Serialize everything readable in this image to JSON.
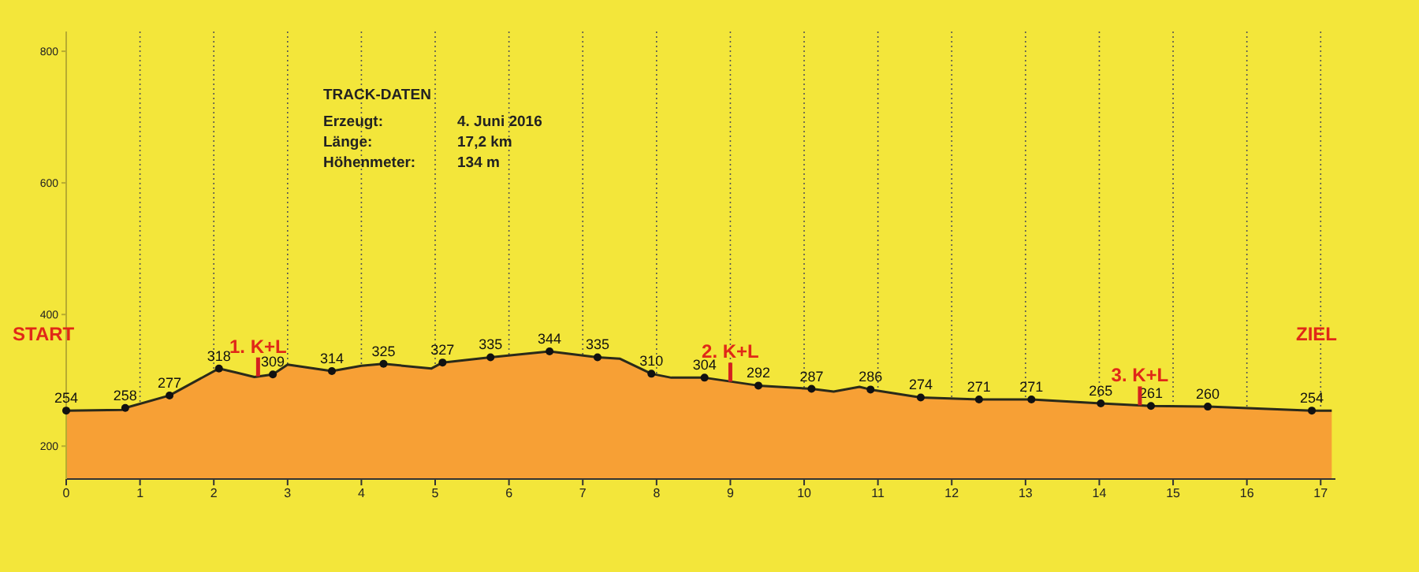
{
  "chart_data": {
    "type": "area",
    "x": [
      0,
      0.75,
      0.8,
      1.4,
      2.07,
      2.3,
      2.55,
      2.8,
      3.0,
      3.6,
      4.0,
      4.3,
      4.95,
      5.1,
      5.75,
      6.55,
      7.2,
      7.5,
      7.93,
      8.2,
      8.65,
      9.38,
      10.1,
      10.4,
      10.75,
      10.9,
      11.58,
      12.37,
      13.08,
      14.02,
      14.7,
      15.47,
      16.88,
      17.15
    ],
    "series": [
      {
        "color": "#f7a035",
        "values": [
          254,
          255,
          258,
          277,
          318,
          312,
          305,
          309,
          324,
          314,
          322,
          325,
          318,
          327,
          335,
          344,
          335,
          333,
          310,
          304,
          304,
          292,
          287,
          283,
          290,
          286,
          274,
          271,
          271,
          265,
          261,
          260,
          254,
          254
        ],
        "value_labels": [
          "254",
          null,
          "258",
          "277",
          "318",
          null,
          null,
          "309",
          null,
          "314",
          null,
          "325",
          null,
          "327",
          "335",
          "344",
          "335",
          null,
          "310",
          null,
          "304",
          "292",
          "287",
          null,
          null,
          "286",
          "274",
          "271",
          "271",
          "265",
          "261",
          "260",
          "254",
          null
        ]
      }
    ],
    "marker": "circle",
    "xlim": [
      0,
      17.2
    ],
    "xticks": [
      0,
      1,
      2,
      3,
      4,
      5,
      6,
      7,
      8,
      9,
      10,
      11,
      12,
      13,
      14,
      15,
      16,
      17
    ],
    "ylim": [
      150,
      830
    ],
    "yticks": [
      200,
      400,
      600,
      800
    ],
    "grid": "x",
    "annotations": [
      {
        "text": "1. K+L",
        "x": 2.6,
        "y": 306
      },
      {
        "text": "2. K+L",
        "x": 9.0,
        "y": 298
      },
      {
        "text": "3. K+L",
        "x": 14.55,
        "y": 262
      },
      "START",
      "ZIEL",
      "TRACK-DATEN",
      "Erzeugt:\t4. Juni 2016",
      "Länge:\t17,2 km",
      "Höhenmeter:\t134 m"
    ]
  }
}
